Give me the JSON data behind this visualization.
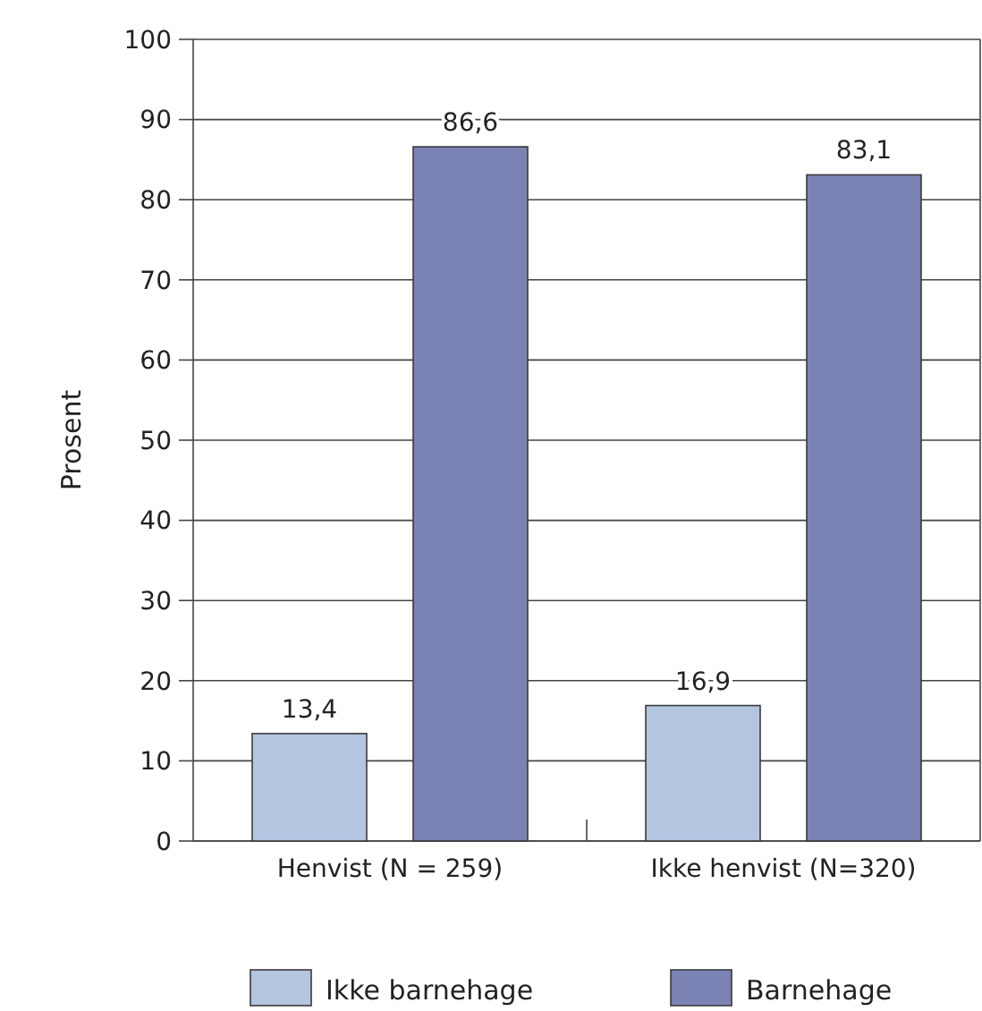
{
  "chart_data": {
    "type": "bar",
    "ylabel": "Prosent",
    "categories": [
      "Henvist (N = 259)",
      "Ikke henvist (N=320)"
    ],
    "series": [
      {
        "name": "Ikke barnehage",
        "color": "#b4c5e0",
        "values": [
          13.4,
          16.9
        ],
        "value_labels": [
          "13,4",
          "16,9"
        ]
      },
      {
        "name": "Barnehage",
        "color": "#7b83b5",
        "values": [
          86.6,
          83.1
        ],
        "value_labels": [
          "86,6",
          "83,1"
        ]
      }
    ],
    "ylim": [
      0,
      100
    ],
    "yticks": [
      0,
      10,
      20,
      30,
      40,
      50,
      60,
      70,
      80,
      90,
      100
    ],
    "grid": "y",
    "legend": "bottom"
  }
}
